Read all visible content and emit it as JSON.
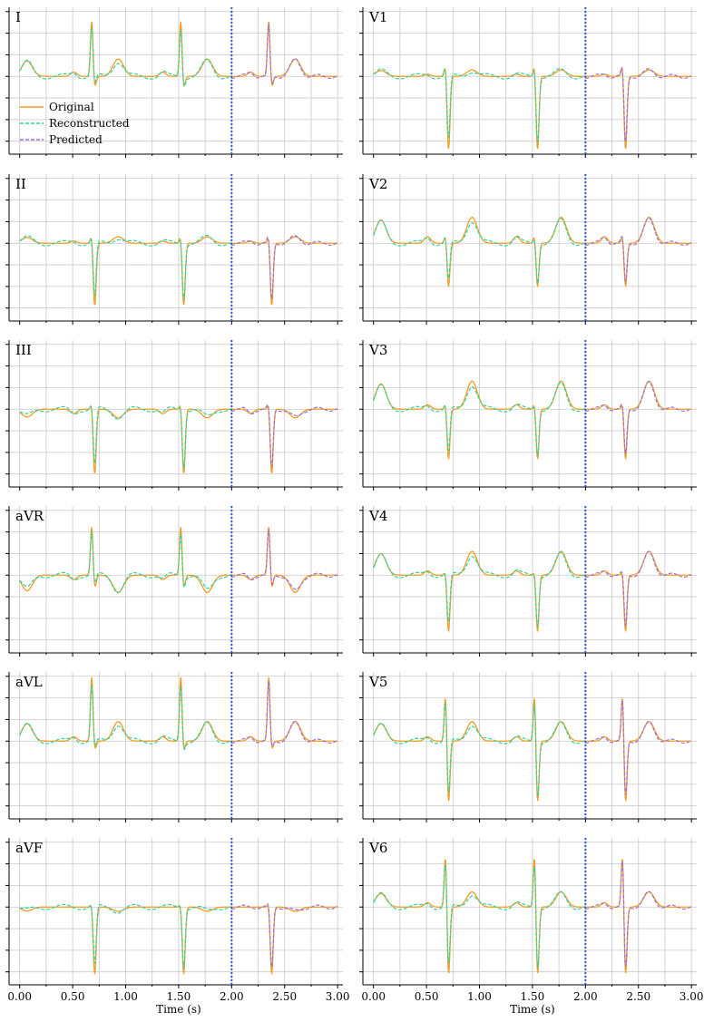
{
  "chart_data": {
    "type": "line",
    "layout": "6x2 grid of ECG lead panels",
    "xlabel": "Time (s)",
    "xlim": [
      -0.1,
      3.05
    ],
    "xticks": [
      "0.00",
      "0.50",
      "1.00",
      "1.50",
      "2.00",
      "2.50",
      "3.00"
    ],
    "ylim": [
      -3.6,
      3.2
    ],
    "grid": true,
    "divider_x": 2.0,
    "legend": {
      "placement": "upper-left of first panel",
      "entries": [
        {
          "name": "Original",
          "style": "solid",
          "color": "#f39c1f"
        },
        {
          "name": "Reconstructed",
          "style": "dashed",
          "color": "#2ed3a0"
        },
        {
          "name": "Predicted",
          "style": "dashed",
          "color": "#9a6ee0"
        }
      ]
    },
    "colors": {
      "original": "#f39c1f",
      "reconstructed": "#2ed3a0",
      "predicted": "#9a6ee0",
      "overlap": "#74a84a",
      "divider": "#2f55e6",
      "grid": "#c8c8c8"
    },
    "beat_times_s": [
      0.68,
      1.52,
      2.35
    ],
    "leads": [
      {
        "name": "I",
        "q": 0.0,
        "r": 2.6,
        "s": -0.5,
        "t": 0.8,
        "p": 0.2
      },
      {
        "name": "II",
        "q": 0.0,
        "r": 0.4,
        "s": -2.9,
        "t": 0.3,
        "p": 0.1
      },
      {
        "name": "III",
        "q": 0.0,
        "r": 0.3,
        "s": -3.0,
        "t": -0.4,
        "p": -0.2
      },
      {
        "name": "aVR",
        "q": 0.0,
        "r": 2.3,
        "s": -0.6,
        "t": -0.8,
        "p": -0.2
      },
      {
        "name": "aVL",
        "q": 0.0,
        "r": 3.0,
        "s": -0.4,
        "t": 0.9,
        "p": 0.2
      },
      {
        "name": "aVF",
        "q": 0.0,
        "r": 0.2,
        "s": -3.1,
        "t": -0.2,
        "p": 0.0
      },
      {
        "name": "V1",
        "q": 0.0,
        "r": 0.6,
        "s": -3.4,
        "t": 0.3,
        "p": 0.1
      },
      {
        "name": "V2",
        "q": 0.0,
        "r": 0.4,
        "s": -2.0,
        "t": 1.2,
        "p": 0.3
      },
      {
        "name": "V3",
        "q": 0.0,
        "r": 0.3,
        "s": -2.3,
        "t": 1.3,
        "p": 0.2
      },
      {
        "name": "V4",
        "q": 0.0,
        "r": 0.2,
        "s": -2.6,
        "t": 1.1,
        "p": 0.2
      },
      {
        "name": "V5",
        "q": 0.0,
        "r": 2.3,
        "s": -2.9,
        "t": 0.9,
        "p": 0.2
      },
      {
        "name": "V6",
        "q": 0.0,
        "r": 2.6,
        "s": -3.2,
        "t": 0.7,
        "p": 0.2
      }
    ]
  }
}
